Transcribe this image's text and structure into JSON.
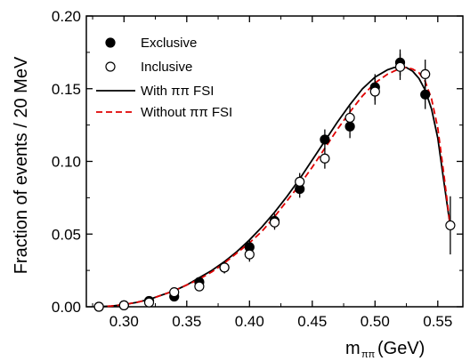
{
  "chart_data": {
    "type": "scatter",
    "xlabel_main": "m",
    "xlabel_sub": "ππ",
    "xlabel_unit": "(GeV)",
    "ylabel": "Fraction of events / 20 MeV",
    "xlim": [
      0.27,
      0.57
    ],
    "ylim": [
      0.0,
      0.2
    ],
    "x_ticks": [
      0.3,
      0.35,
      0.4,
      0.45,
      0.5,
      0.55
    ],
    "x_tick_labels": [
      "0.30",
      "0.35",
      "0.40",
      "0.45",
      "0.50",
      "0.55"
    ],
    "y_ticks": [
      0.0,
      0.05,
      0.1,
      0.15,
      0.2
    ],
    "y_tick_labels": [
      "0.00",
      "0.05",
      "0.10",
      "0.15",
      "0.20"
    ],
    "legend_position": "top-left",
    "series": [
      {
        "name": "Exclusive",
        "kind": "points",
        "marker": "filled-circle",
        "color": "#000000",
        "x": [
          0.28,
          0.3,
          0.32,
          0.34,
          0.36,
          0.38,
          0.4,
          0.42,
          0.44,
          0.46,
          0.48,
          0.5,
          0.52,
          0.54
        ],
        "y": [
          0.0,
          0.001,
          0.004,
          0.007,
          0.017,
          0.027,
          0.041,
          0.059,
          0.081,
          0.115,
          0.124,
          0.151,
          0.168,
          0.146
        ],
        "err": [
          0.002,
          0.002,
          0.002,
          0.003,
          0.003,
          0.004,
          0.005,
          0.005,
          0.006,
          0.007,
          0.008,
          0.009,
          0.009,
          0.01
        ]
      },
      {
        "name": "Inclusive",
        "kind": "points",
        "marker": "open-circle",
        "color": "#000000",
        "x": [
          0.28,
          0.3,
          0.32,
          0.34,
          0.36,
          0.38,
          0.4,
          0.42,
          0.44,
          0.46,
          0.48,
          0.5,
          0.52,
          0.54,
          0.56
        ],
        "y": [
          0.0,
          0.001,
          0.003,
          0.01,
          0.014,
          0.027,
          0.036,
          0.058,
          0.086,
          0.102,
          0.13,
          0.148,
          0.165,
          0.16,
          0.056
        ],
        "err": [
          0.002,
          0.002,
          0.002,
          0.003,
          0.003,
          0.004,
          0.005,
          0.005,
          0.006,
          0.007,
          0.008,
          0.009,
          0.009,
          0.01,
          0.02
        ]
      },
      {
        "name": "With ππ FSI",
        "kind": "line",
        "style": "solid",
        "color": "#000000",
        "x": [
          0.279,
          0.29,
          0.3,
          0.31,
          0.32,
          0.33,
          0.34,
          0.35,
          0.36,
          0.37,
          0.38,
          0.39,
          0.4,
          0.41,
          0.42,
          0.43,
          0.44,
          0.45,
          0.46,
          0.47,
          0.48,
          0.49,
          0.5,
          0.51,
          0.515,
          0.52,
          0.525,
          0.53,
          0.535,
          0.54,
          0.545,
          0.55,
          0.555,
          0.56
        ],
        "y": [
          0.0,
          0.0005,
          0.0015,
          0.003,
          0.005,
          0.008,
          0.011,
          0.015,
          0.02,
          0.025,
          0.031,
          0.038,
          0.046,
          0.055,
          0.065,
          0.076,
          0.088,
          0.101,
          0.114,
          0.127,
          0.139,
          0.15,
          0.158,
          0.163,
          0.1645,
          0.165,
          0.1645,
          0.162,
          0.157,
          0.149,
          0.136,
          0.116,
          0.085,
          0.055
        ]
      },
      {
        "name": "Without ππ FSI",
        "kind": "line",
        "style": "dashed",
        "color": "#e00000",
        "x": [
          0.279,
          0.29,
          0.3,
          0.31,
          0.32,
          0.33,
          0.34,
          0.35,
          0.36,
          0.37,
          0.38,
          0.39,
          0.4,
          0.41,
          0.42,
          0.43,
          0.44,
          0.45,
          0.46,
          0.47,
          0.48,
          0.49,
          0.5,
          0.51,
          0.515,
          0.52,
          0.525,
          0.53,
          0.535,
          0.54,
          0.545,
          0.55,
          0.555,
          0.56
        ],
        "y": [
          0.0,
          0.0005,
          0.0015,
          0.003,
          0.005,
          0.008,
          0.011,
          0.015,
          0.019,
          0.024,
          0.03,
          0.037,
          0.044,
          0.052,
          0.062,
          0.073,
          0.084,
          0.096,
          0.109,
          0.122,
          0.134,
          0.145,
          0.154,
          0.16,
          0.162,
          0.164,
          0.1645,
          0.1635,
          0.161,
          0.155,
          0.143,
          0.123,
          0.09,
          0.055
        ]
      }
    ]
  }
}
